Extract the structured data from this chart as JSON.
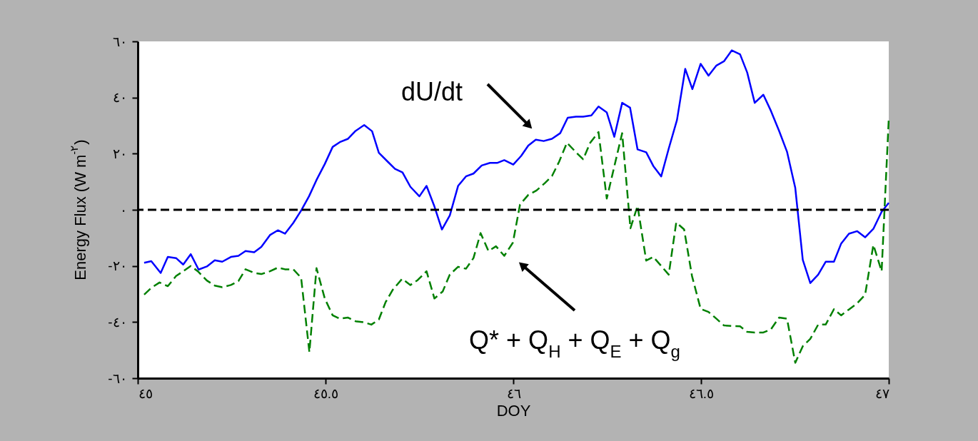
{
  "chart_data": {
    "type": "line",
    "xlabel": "DOY",
    "ylabel": "Energy Flux (W m$^{-٢}$)",
    "xlim": [
      45,
      47
    ],
    "ylim": [
      -60,
      60
    ],
    "xticks": [
      {
        "value": 45,
        "label": "٤٥"
      },
      {
        "value": 45.5,
        "label": "٤٥.٥"
      },
      {
        "value": 46,
        "label": "٤٦"
      },
      {
        "value": 46.5,
        "label": "٤٦.٥"
      },
      {
        "value": 47,
        "label": "٤٧"
      }
    ],
    "yticks": [
      {
        "value": -60,
        "label": "-٦٠"
      },
      {
        "value": -40,
        "label": "-٤٠"
      },
      {
        "value": -20,
        "label": "-٢٠"
      },
      {
        "value": 0,
        "label": "٠"
      },
      {
        "value": 20,
        "label": "٢٠"
      },
      {
        "value": 40,
        "label": "٤٠"
      },
      {
        "value": 60,
        "label": "٦٠"
      }
    ],
    "grid": false,
    "series": [
      {
        "color": "#0000ff",
        "line_style": "solid",
        "x": [
          45.017,
          45.036,
          45.061,
          45.08,
          45.102,
          45.121,
          45.141,
          45.162,
          45.184,
          45.205,
          45.225,
          45.248,
          45.268,
          45.287,
          45.31,
          45.329,
          45.352,
          45.373,
          45.392,
          45.414,
          45.435,
          45.456,
          45.477,
          45.498,
          45.519,
          45.538,
          45.56,
          45.58,
          45.603,
          45.624,
          45.642,
          45.666,
          45.685,
          45.705,
          45.726,
          45.75,
          45.769,
          45.79,
          45.81,
          45.831,
          45.853,
          45.874,
          45.894,
          45.916,
          45.938,
          45.957,
          45.976,
          46.0,
          46.021,
          46.04,
          46.06,
          46.081,
          46.103,
          46.125,
          46.145,
          46.167,
          46.186,
          46.208,
          46.227,
          46.249,
          46.269,
          46.29,
          46.311,
          46.331,
          46.354,
          46.373,
          46.394,
          46.414,
          46.436,
          46.458,
          46.477,
          46.499,
          46.52,
          46.541,
          46.561,
          46.582,
          46.604,
          46.623,
          46.643,
          46.666,
          46.686,
          46.708,
          46.729,
          46.751,
          46.771,
          46.791,
          46.812,
          46.832,
          46.854,
          46.873,
          46.894,
          46.916,
          46.937,
          46.959,
          46.981,
          47.0
        ],
        "values": [
          -18.9,
          -18.3,
          -22.5,
          -16.8,
          -17.2,
          -19.5,
          -15.8,
          -21.3,
          -20.2,
          -18.0,
          -18.5,
          -16.8,
          -16.4,
          -14.7,
          -15.1,
          -13.2,
          -9.0,
          -7.3,
          -8.5,
          -4.7,
          -0.3,
          4.8,
          10.9,
          16.3,
          22.4,
          24.1,
          25.3,
          28.1,
          30.2,
          28.0,
          20.3,
          17.1,
          14.6,
          13.3,
          8.2,
          4.8,
          8.5,
          1.2,
          -7.0,
          -2.0,
          8.5,
          11.9,
          12.9,
          15.8,
          16.7,
          16.7,
          17.7,
          16.1,
          19.2,
          22.9,
          25.0,
          24.5,
          25.3,
          27.3,
          32.8,
          33.2,
          33.2,
          33.6,
          36.8,
          34.7,
          26.0,
          38.1,
          36.4,
          21.5,
          20.5,
          15.6,
          11.9,
          21.8,
          32.0,
          50.2,
          43.0,
          52.0,
          47.8,
          51.4,
          52.9,
          56.8,
          55.4,
          48.9,
          38.1,
          41.0,
          35.3,
          28.1,
          20.7,
          7.8,
          -17.8,
          -26.1,
          -23.1,
          -18.5,
          -18.5,
          -12.1,
          -8.5,
          -7.6,
          -9.8,
          -6.8,
          -0.7,
          2.5
        ]
      },
      {
        "color": "#008000",
        "line_style": "dashed",
        "x": [
          45.017,
          45.036,
          45.058,
          45.08,
          45.102,
          45.121,
          45.141,
          45.16,
          45.184,
          45.205,
          45.225,
          45.248,
          45.268,
          45.287,
          45.31,
          45.329,
          45.352,
          45.373,
          45.392,
          45.414,
          45.435,
          45.457,
          45.476,
          45.498,
          45.519,
          45.538,
          45.56,
          45.58,
          45.603,
          45.622,
          45.642,
          45.66,
          45.679,
          45.704,
          45.726,
          45.745,
          45.769,
          45.79,
          45.812,
          45.831,
          45.853,
          45.874,
          45.894,
          45.913,
          45.934,
          45.954,
          45.976,
          45.999,
          46.018,
          46.04,
          46.062,
          46.084,
          46.103,
          46.122,
          46.143,
          46.167,
          46.186,
          46.205,
          46.227,
          46.249,
          46.269,
          46.29,
          46.312,
          46.331,
          46.354,
          46.373,
          46.394,
          46.414,
          46.434,
          46.455,
          46.476,
          46.499,
          46.52,
          46.541,
          46.561,
          46.582,
          46.604,
          46.623,
          46.643,
          46.666,
          46.686,
          46.708,
          46.729,
          46.751,
          46.771,
          46.791,
          46.812,
          46.832,
          46.854,
          46.873,
          46.894,
          46.916,
          46.937,
          46.959,
          46.981,
          47.0
        ],
        "values": [
          -30.2,
          -27.8,
          -25.9,
          -27.2,
          -23.6,
          -21.9,
          -20.0,
          -21.9,
          -25.2,
          -27.0,
          -27.6,
          -26.8,
          -25.4,
          -21.2,
          -22.5,
          -22.9,
          -21.9,
          -20.6,
          -21.2,
          -21.2,
          -24.2,
          -50.7,
          -20.8,
          -31.6,
          -37.6,
          -38.8,
          -38.4,
          -39.7,
          -40.1,
          -40.9,
          -39.1,
          -32.9,
          -28.5,
          -24.6,
          -26.8,
          -25.1,
          -21.9,
          -31.6,
          -29.1,
          -23.1,
          -20.3,
          -21.0,
          -17.2,
          -8.3,
          -14.7,
          -13.0,
          -16.4,
          -11.7,
          1.9,
          5.3,
          6.9,
          9.5,
          12.0,
          17.1,
          23.9,
          20.5,
          18.0,
          23.9,
          27.7,
          4.0,
          15.4,
          27.3,
          -6.6,
          1.4,
          -18.1,
          -16.8,
          -20.0,
          -23.1,
          -4.5,
          -7.0,
          -23.6,
          -35.3,
          -36.4,
          -38.8,
          -41.2,
          -41.4,
          -41.5,
          -43.5,
          -43.7,
          -43.7,
          -42.6,
          -38.4,
          -38.8,
          -54.5,
          -48.6,
          -46.0,
          -40.9,
          -40.9,
          -35.4,
          -37.6,
          -35.5,
          -33.3,
          -30.3,
          -12.5,
          -21.9,
          32.4
        ]
      }
    ],
    "ref_lines": [
      {
        "axis": "y",
        "value": 0,
        "color": "#000000",
        "line_style": "dashed"
      }
    ],
    "annotations": [
      "dU/dt",
      "Q* + Q$_{H}$ + Q$_{E}$ + Q$_{g}$"
    ]
  }
}
